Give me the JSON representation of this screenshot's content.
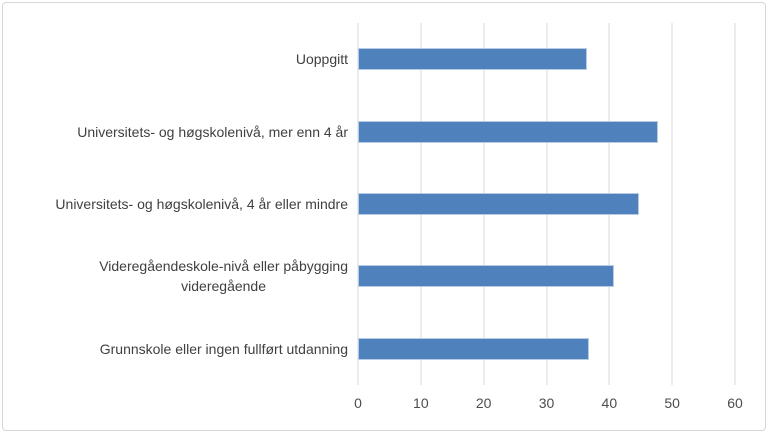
{
  "chart_data": {
    "type": "bar",
    "orientation": "horizontal",
    "title": "",
    "xlabel": "",
    "ylabel": "",
    "categories": [
      "Uoppgitt",
      "Universitets- og høgskolenivå, mer enn 4 år",
      "Universitets- og høgskolenivå, 4 år eller mindre",
      "Videregåendeskole-nivå eller påbygging\nvideregående",
      "Grunnskole eller ingen fullført utdanning"
    ],
    "values": [
      36.4,
      47.7,
      44.7,
      40.7,
      36.8
    ],
    "xlim": [
      0,
      60
    ],
    "xticks": [
      0,
      10,
      20,
      30,
      40,
      50,
      60
    ],
    "grid": true,
    "legend": false,
    "legend_position": "none",
    "colors": {
      "bar": "#4f81bd",
      "bar_border": "#b7cbe5",
      "gridline": "#d9d9d9",
      "axis_line": "#d9d9d9",
      "label_text": "#404040",
      "tick_text": "#4d4d4d",
      "frame_border": "#d7d7d7",
      "background": "#ffffff"
    }
  }
}
